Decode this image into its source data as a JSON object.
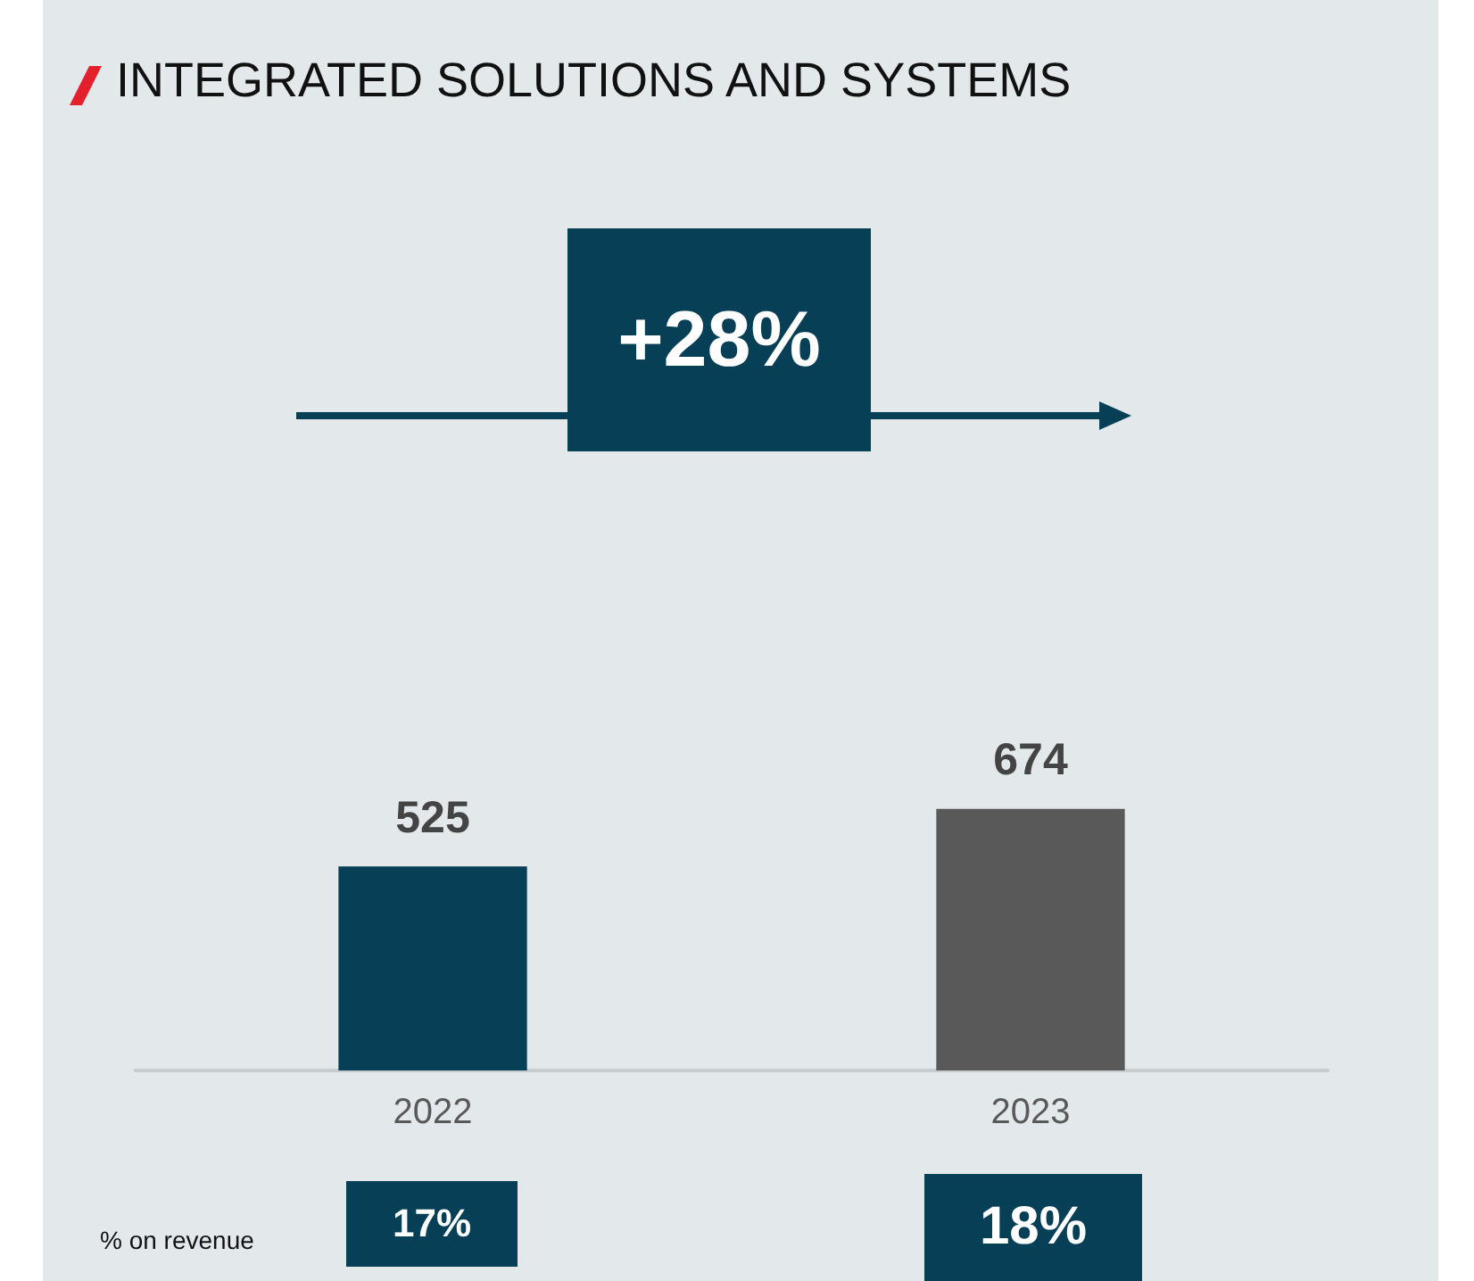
{
  "chart_data": {
    "type": "bar",
    "title": "INTEGRATED SOLUTIONS AND SYSTEMS",
    "categories": [
      "2022",
      "2023"
    ],
    "values": [
      525,
      674
    ],
    "colors": [
      "#073f57",
      "#595959"
    ],
    "data_labels": true,
    "annotations": [
      "+28%",
      "17%",
      "18%",
      "% on revenue"
    ]
  }
}
